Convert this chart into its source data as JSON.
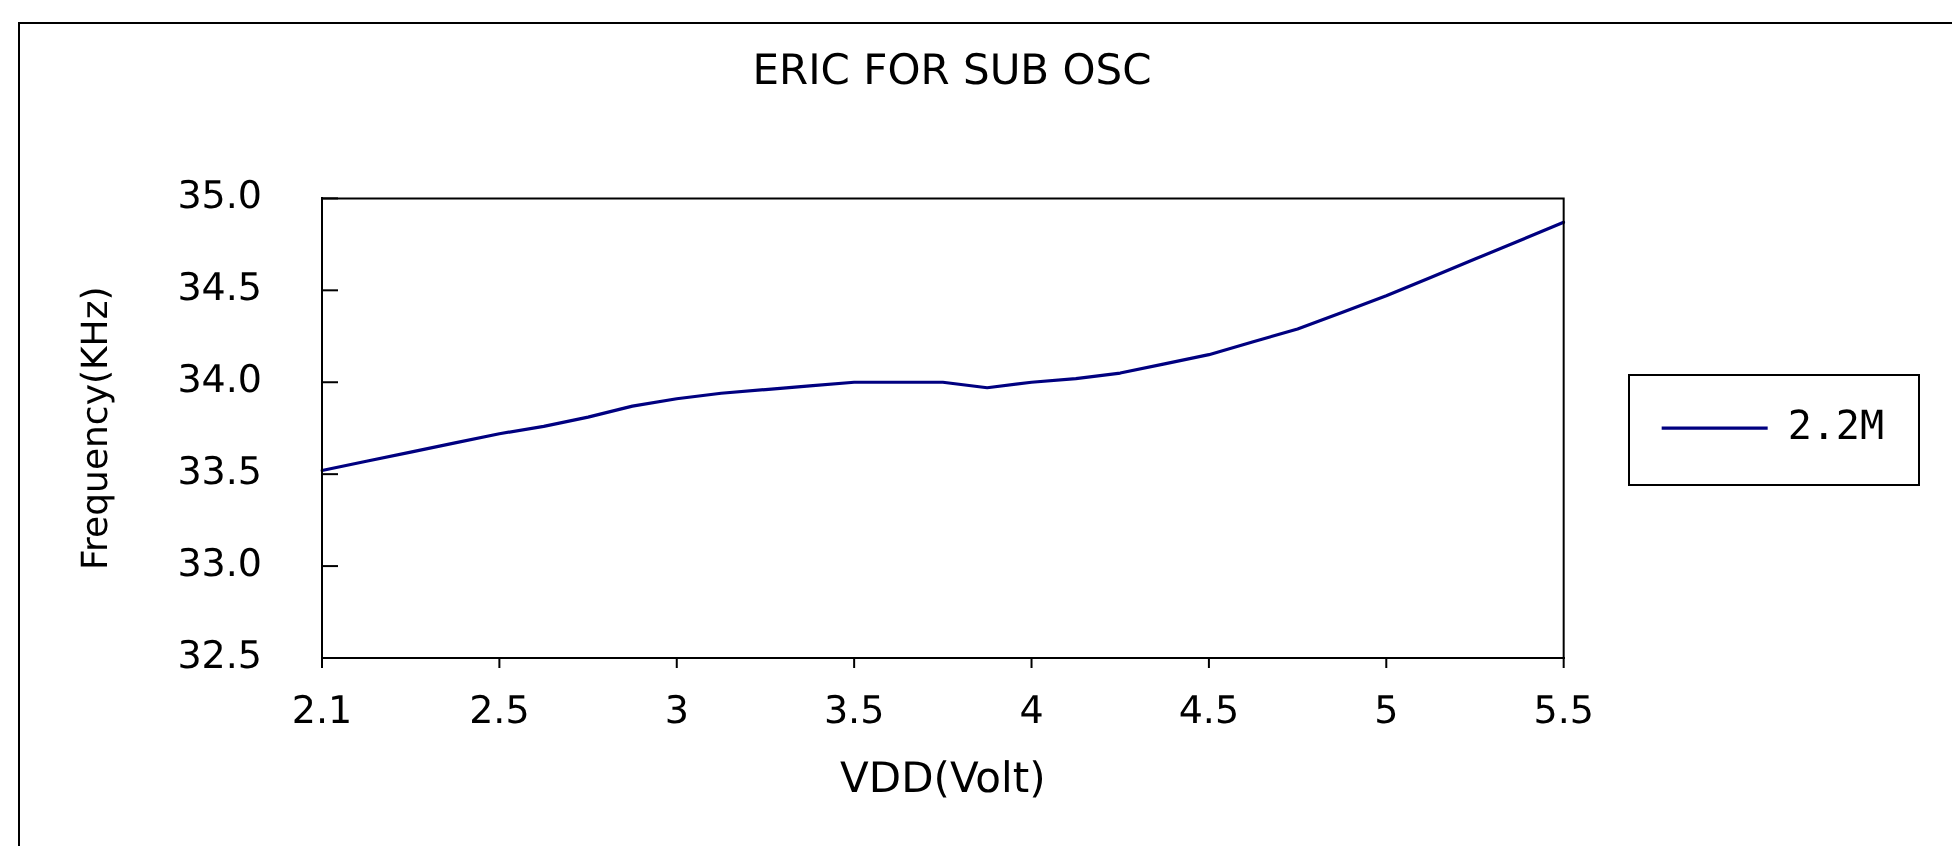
{
  "chart_data": {
    "type": "line",
    "title": "ERIC FOR SUB OSC",
    "xlabel": "VDD(Volt)",
    "ylabel": "Frequency(KHz)",
    "categories": [
      "2.1",
      null,
      null,
      null,
      "2.5",
      null,
      null,
      null,
      "3",
      null,
      null,
      null,
      "3.5",
      null,
      null,
      null,
      "4",
      null,
      null,
      null,
      "4.5",
      null,
      null,
      null,
      "5",
      null,
      null,
      null,
      "5.5"
    ],
    "series": [
      {
        "name": "2.2M",
        "color": "#000080",
        "values": [
          33.52,
          33.57,
          33.62,
          33.67,
          33.72,
          33.76,
          33.81,
          33.87,
          33.91,
          33.94,
          33.96,
          33.98,
          34.0,
          34.0,
          34.0,
          33.97,
          34.0,
          34.02,
          34.05,
          34.1,
          34.15,
          34.22,
          34.29,
          34.38,
          34.47,
          34.57,
          34.67,
          34.77,
          34.87
        ]
      }
    ],
    "ylim": [
      32.5,
      35.0
    ],
    "yticks": [
      32.5,
      {
        "value": 33,
        "label": "33.0"
      },
      33.5,
      {
        "value": 34,
        "label": "34.0"
      },
      34.5,
      {
        "value": 35,
        "label": "35.0"
      }
    ],
    "grid": false,
    "legend": "right",
    "marker": "none",
    "line_style": "solid"
  }
}
